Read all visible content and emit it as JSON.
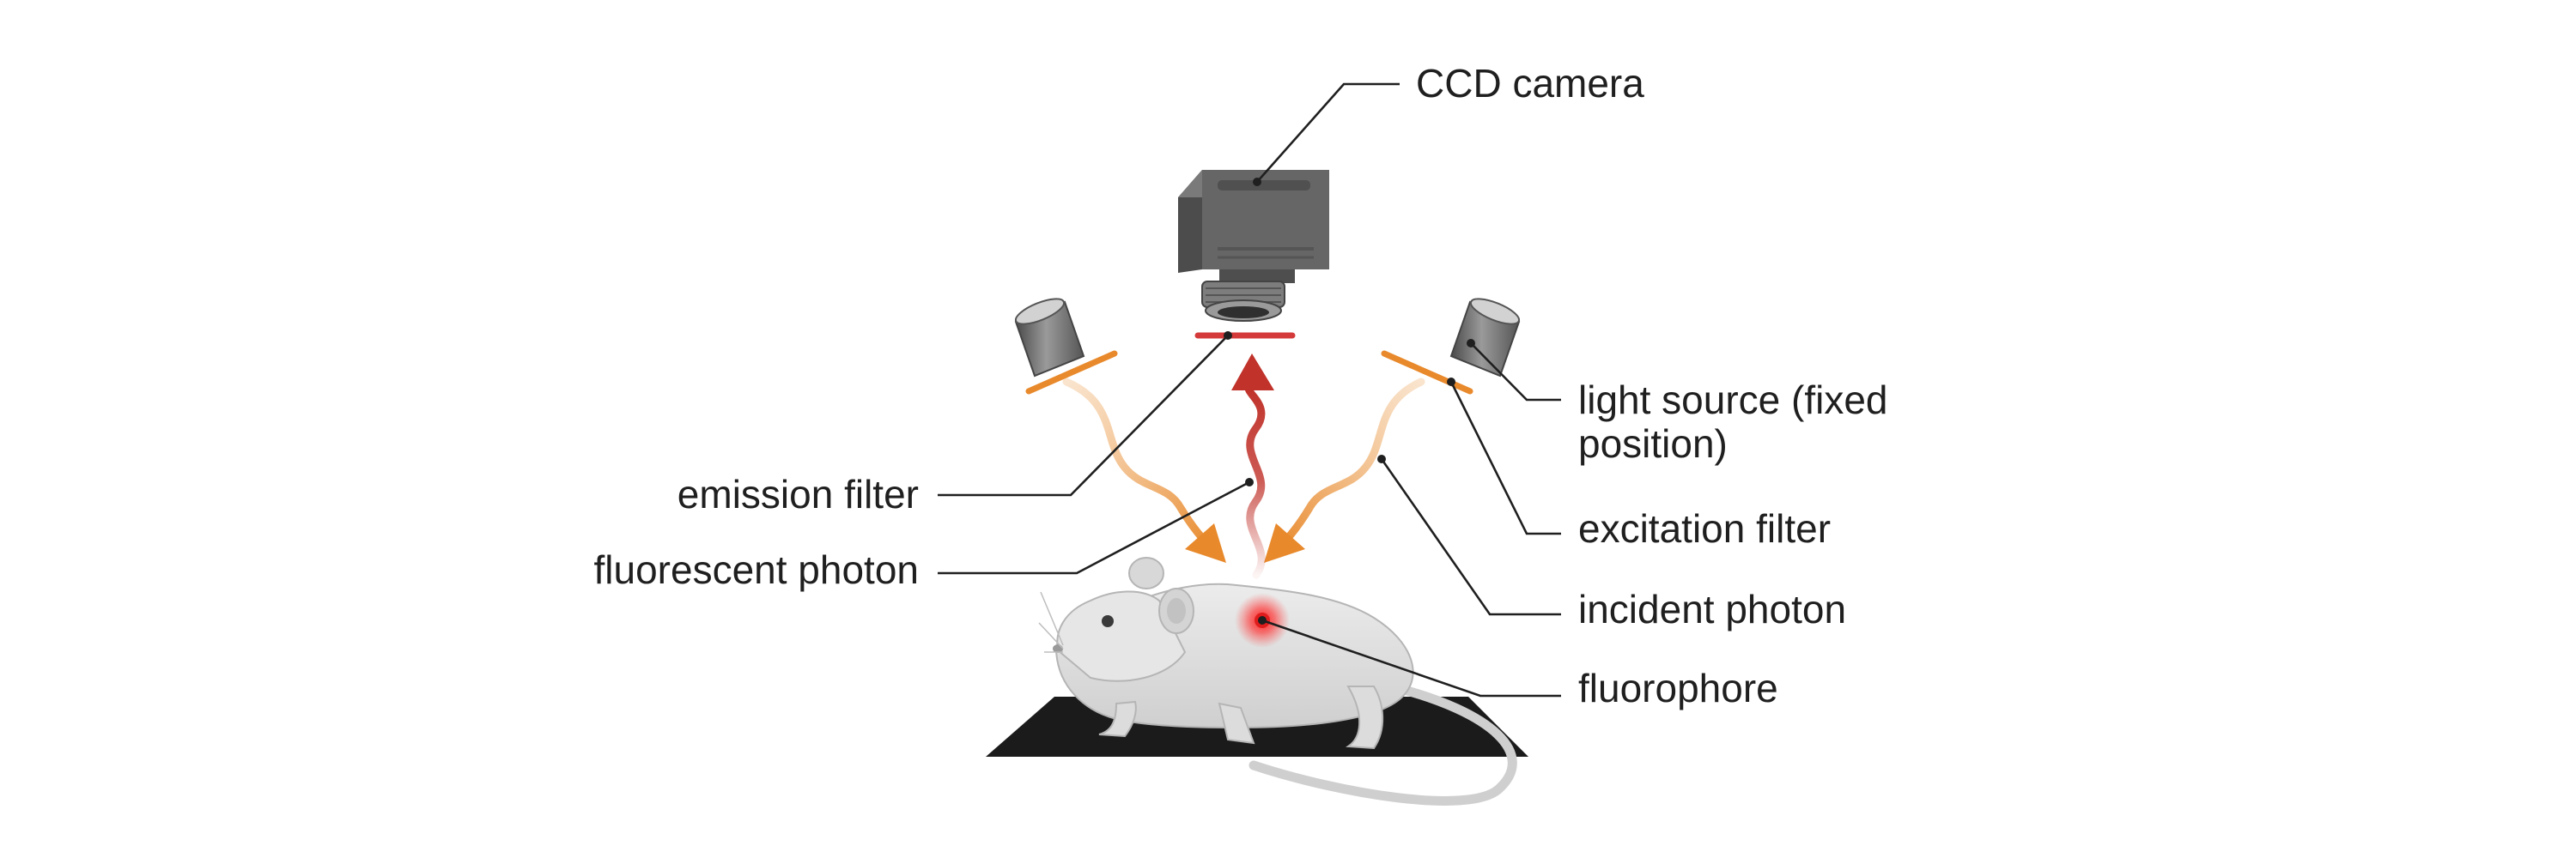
{
  "labels": {
    "ccd_camera": "CCD camera",
    "light_source_line1": "light source (fixed",
    "light_source_line2": "position)",
    "excitation_filter": "excitation filter",
    "incident_photon": "incident photon",
    "fluorophore": "fluorophore",
    "emission_filter": "emission filter",
    "fluorescent_photon": "fluorescent photon"
  },
  "colors": {
    "camera_body": "#5b5b5b",
    "camera_front": "#6d6d6d",
    "filter_orange": "#e8892b",
    "emission_filter_red": "#d43a3a",
    "fluorescent_photon_red": "#c0322a",
    "fluorophore_red": "#e01d1d",
    "mouse_fur": "#e4e4e4",
    "stage": "#1b1b1b",
    "leader_line": "#1f1f1f"
  },
  "icons": [
    "ccd-camera-icon",
    "light-source-icon",
    "mouse-icon",
    "stage-icon"
  ]
}
